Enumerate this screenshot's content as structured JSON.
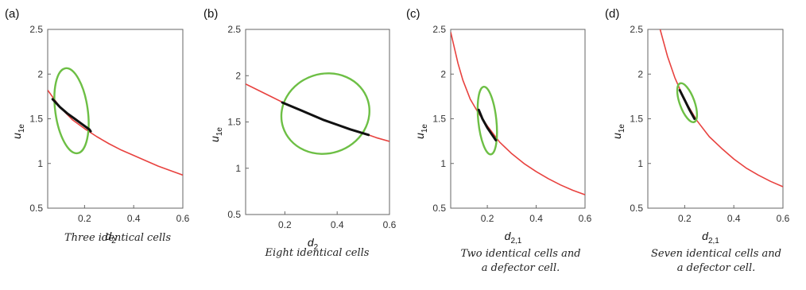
{
  "chart_data": [
    {
      "type": "line",
      "panel_label": "(a)",
      "xlabel": "d",
      "xlabel_sub": "2",
      "ylabel": "u",
      "ylabel_sub": "1e",
      "xlim": [
        0.05,
        0.6
      ],
      "ylim": [
        0.5,
        2.5
      ],
      "xticks": [
        "0.2",
        "0.4",
        "0.6"
      ],
      "yticks": [
        "0.5",
        "1",
        "1.5",
        "2",
        "2.5"
      ],
      "caption": [
        "Three identical cells"
      ],
      "colors": {
        "curve": "#e8423f",
        "segment": "#111111",
        "ellipse": "#6dbf45"
      },
      "curve": {
        "x": [
          0.05,
          0.1,
          0.15,
          0.2,
          0.25,
          0.3,
          0.35,
          0.4,
          0.45,
          0.5,
          0.55,
          0.6
        ],
        "y": [
          1.82,
          1.63,
          1.49,
          1.39,
          1.3,
          1.22,
          1.15,
          1.09,
          1.03,
          0.97,
          0.92,
          0.87
        ]
      },
      "segment": {
        "x": [
          0.07,
          0.1,
          0.13,
          0.16,
          0.19,
          0.22,
          0.225
        ],
        "y": [
          1.72,
          1.63,
          1.56,
          1.5,
          1.44,
          1.38,
          1.36
        ]
      },
      "ellipse": {
        "cx": 0.147,
        "cy": 1.59,
        "rx": 0.066,
        "ry": 0.48,
        "rot": -8
      }
    },
    {
      "type": "line",
      "panel_label": "(b)",
      "xlabel": "d",
      "xlabel_sub": "2",
      "ylabel": "u",
      "ylabel_sub": "1e",
      "xlim": [
        0.05,
        0.6
      ],
      "ylim": [
        0.5,
        2.5
      ],
      "xticks": [
        "0.2",
        "0.4",
        "0.6"
      ],
      "yticks": [
        "0.5",
        "1",
        "1.5",
        "2",
        "2.5"
      ],
      "caption": [
        "Eight identical cells"
      ],
      "colors": {
        "curve": "#e8423f",
        "segment": "#111111",
        "ellipse": "#6dbf45"
      },
      "curve": {
        "x": [
          0.05,
          0.1,
          0.15,
          0.2,
          0.25,
          0.3,
          0.35,
          0.4,
          0.45,
          0.5,
          0.55,
          0.6
        ],
        "y": [
          1.91,
          1.84,
          1.77,
          1.7,
          1.64,
          1.58,
          1.52,
          1.47,
          1.42,
          1.38,
          1.33,
          1.29
        ]
      },
      "segment": {
        "x": [
          0.19,
          0.25,
          0.3,
          0.35,
          0.4,
          0.45,
          0.52
        ],
        "y": [
          1.71,
          1.64,
          1.58,
          1.52,
          1.47,
          1.42,
          1.36
        ]
      },
      "ellipse": {
        "cx": 0.355,
        "cy": 1.59,
        "rx": 0.17,
        "ry": 0.43,
        "rot": -18
      }
    },
    {
      "type": "line",
      "panel_label": "(c)",
      "xlabel": "d",
      "xlabel_sub": "2,1",
      "ylabel": "u",
      "ylabel_sub": "1e",
      "xlim": [
        0.05,
        0.6
      ],
      "ylim": [
        0.5,
        2.5
      ],
      "xticks": [
        "0.2",
        "0.4",
        "0.6"
      ],
      "yticks": [
        "0.5",
        "1",
        "1.5",
        "2",
        "2.5"
      ],
      "caption": [
        "Two identical cells and",
        "a defector cell."
      ],
      "colors": {
        "curve": "#e8423f",
        "segment": "#111111",
        "ellipse": "#6dbf45"
      },
      "curve": {
        "x": [
          0.05,
          0.08,
          0.1,
          0.13,
          0.16,
          0.2,
          0.25,
          0.3,
          0.35,
          0.4,
          0.45,
          0.5,
          0.55,
          0.6
        ],
        "y": [
          2.47,
          2.12,
          1.93,
          1.72,
          1.58,
          1.42,
          1.24,
          1.11,
          1.0,
          0.91,
          0.83,
          0.76,
          0.7,
          0.65
        ]
      },
      "segment": {
        "x": [
          0.165,
          0.18,
          0.2,
          0.22,
          0.235
        ],
        "y": [
          1.6,
          1.5,
          1.4,
          1.32,
          1.26
        ]
      },
      "ellipse": {
        "cx": 0.2,
        "cy": 1.48,
        "rx": 0.037,
        "ry": 0.38,
        "rot": -6
      }
    },
    {
      "type": "line",
      "panel_label": "(d)",
      "xlabel": "d",
      "xlabel_sub": "2,1",
      "ylabel": "u",
      "ylabel_sub": "1e",
      "xlim": [
        0.05,
        0.6
      ],
      "ylim": [
        0.5,
        2.5
      ],
      "xticks": [
        "0.2",
        "0.4",
        "0.6"
      ],
      "yticks": [
        "0.5",
        "1",
        "1.5",
        "2",
        "2.5"
      ],
      "caption": [
        "Seven identical cells and",
        "a defector cell."
      ],
      "colors": {
        "curve": "#e8423f",
        "segment": "#111111",
        "ellipse": "#6dbf45"
      },
      "curve": {
        "x": [
          0.1,
          0.13,
          0.16,
          0.2,
          0.25,
          0.3,
          0.35,
          0.4,
          0.45,
          0.5,
          0.55,
          0.6
        ],
        "y": [
          2.5,
          2.2,
          1.96,
          1.71,
          1.48,
          1.3,
          1.17,
          1.05,
          0.95,
          0.87,
          0.8,
          0.74
        ]
      },
      "segment": {
        "x": [
          0.18,
          0.2,
          0.22,
          0.24
        ],
        "y": [
          1.82,
          1.71,
          1.6,
          1.5
        ]
      },
      "ellipse": {
        "cx": 0.21,
        "cy": 1.68,
        "rx": 0.03,
        "ry": 0.23,
        "rot": -20
      }
    }
  ]
}
